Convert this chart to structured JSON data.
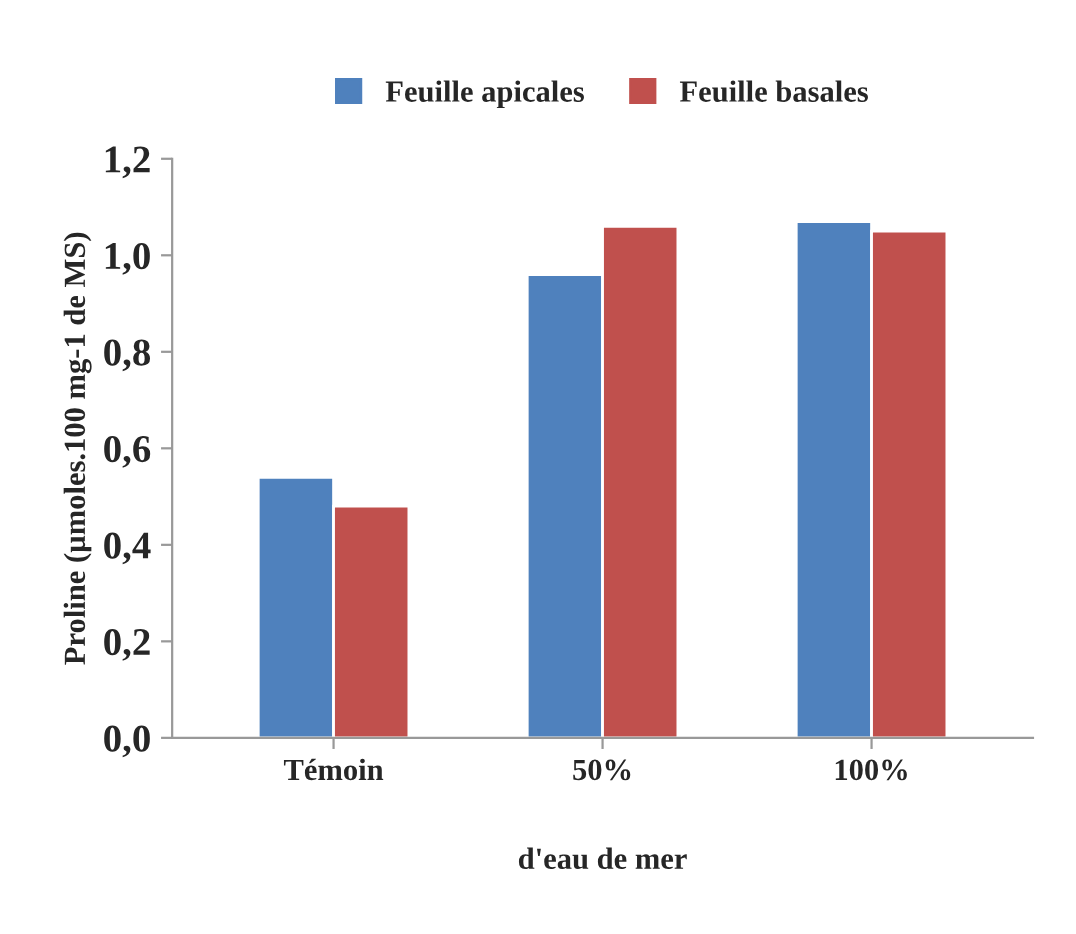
{
  "chart_data": {
    "type": "bar",
    "xlabel": "d'eau de mer",
    "ylabel": "Proline (µmoles.100 mg-1 de MS)",
    "categories": [
      "Témoin",
      "50%",
      "100%"
    ],
    "series": [
      {
        "name": "Feuille apicales",
        "color": "#4f81bd",
        "values": [
          0.54,
          0.96,
          1.07
        ]
      },
      {
        "name": "Feuille basales",
        "color": "#c0504d",
        "values": [
          0.48,
          1.06,
          1.05
        ]
      }
    ],
    "ylim": [
      0,
      1.2
    ],
    "yticks": [
      {
        "value": 0,
        "label": "0,0"
      },
      {
        "value": 0.2,
        "label": "0,2"
      },
      {
        "value": 0.4,
        "label": "0,4"
      },
      {
        "value": 0.6,
        "label": "0,6"
      },
      {
        "value": 0.8,
        "label": "0,8"
      },
      {
        "value": 1.0,
        "label": "1,0"
      },
      {
        "value": 1.2,
        "label": "1,2"
      }
    ],
    "legend": "top",
    "grid": false
  }
}
